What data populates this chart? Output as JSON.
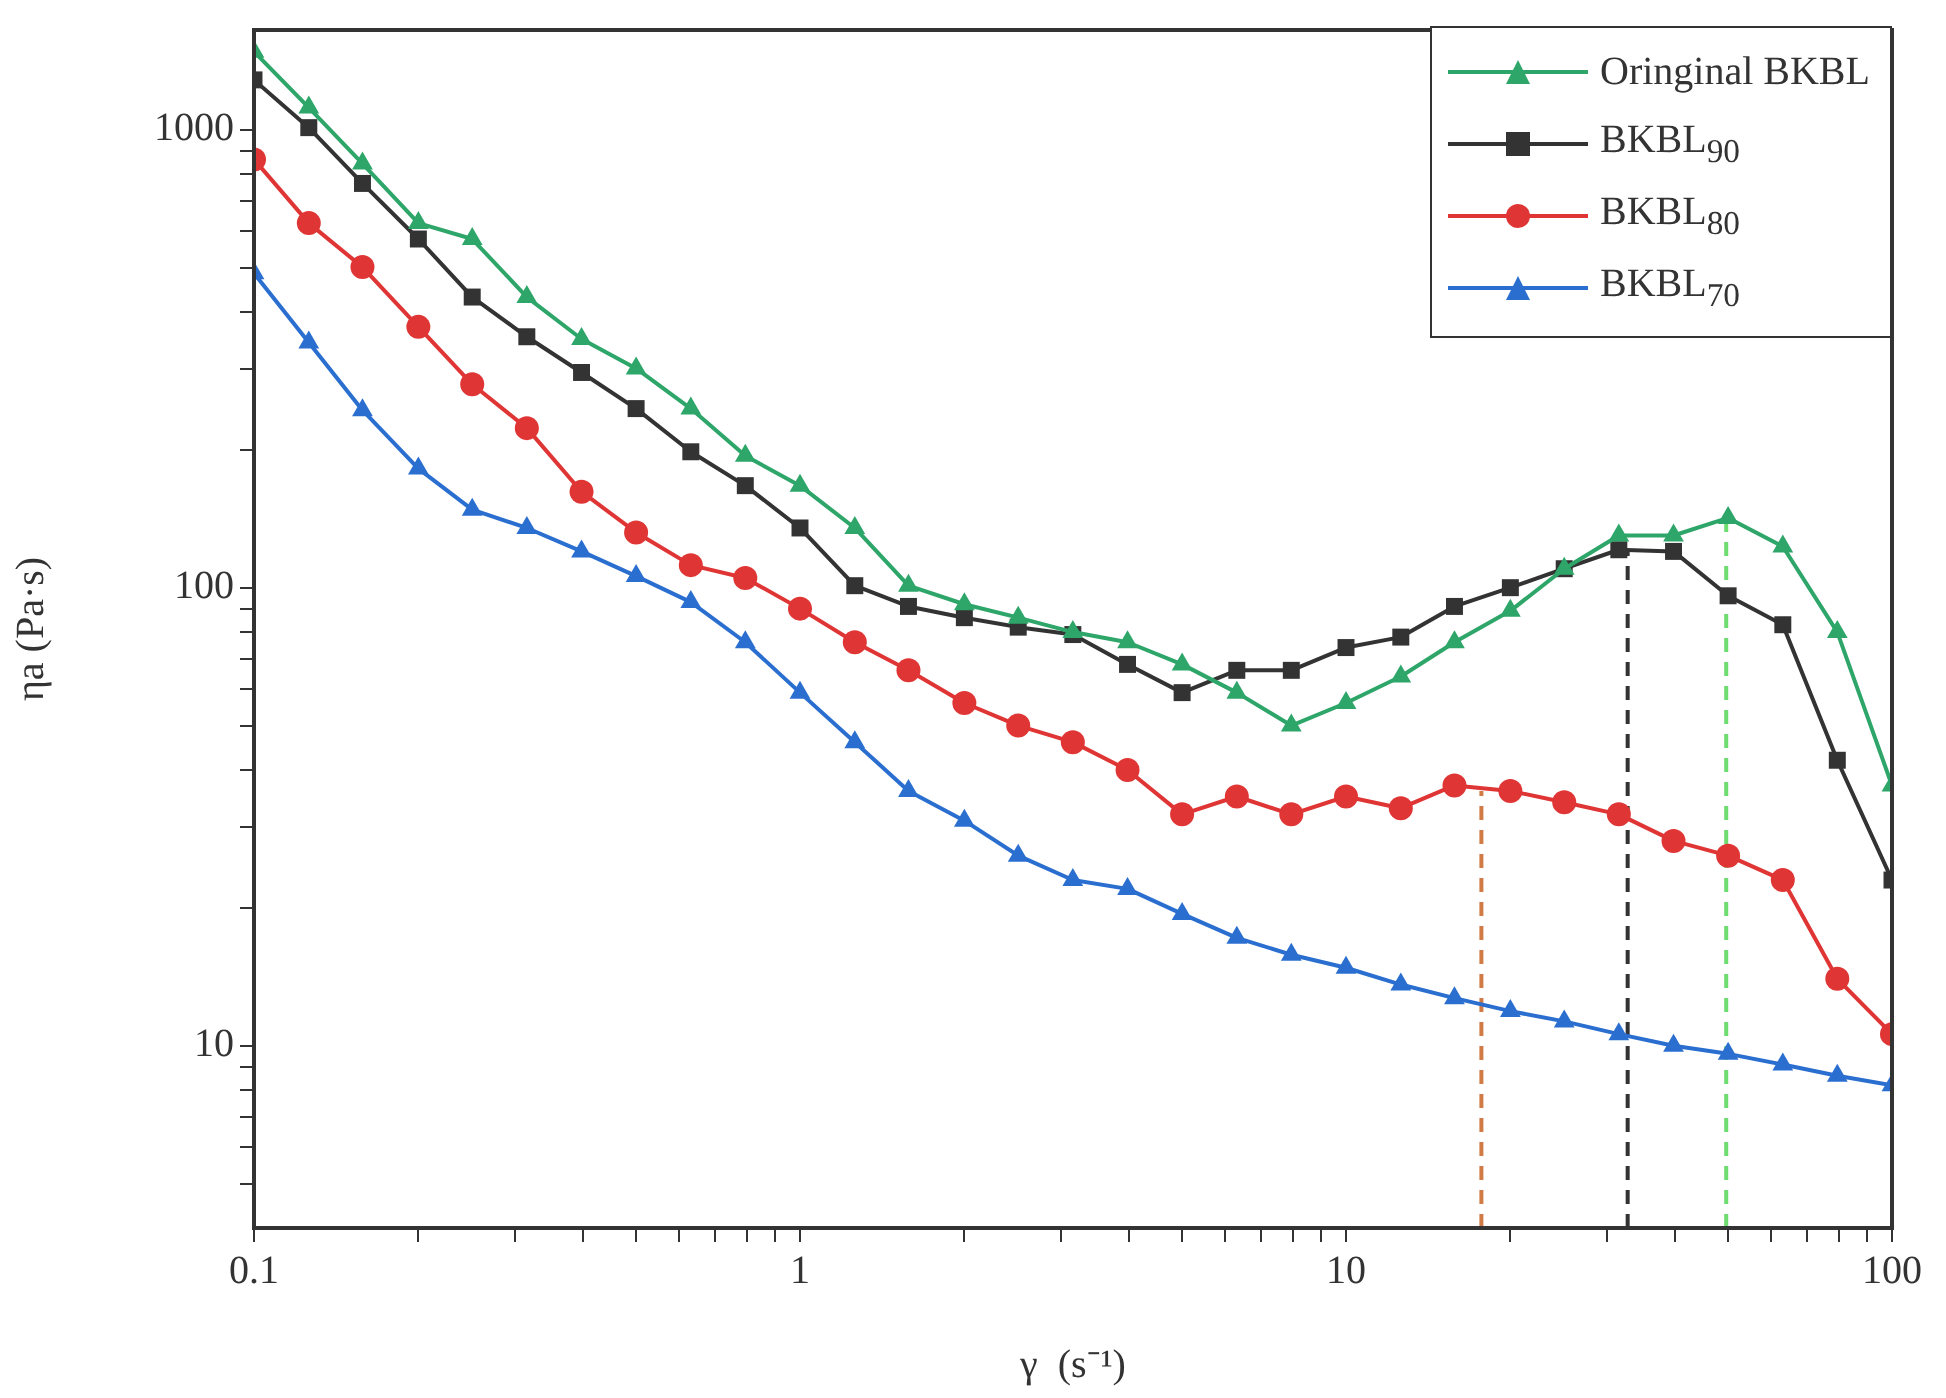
{
  "chart_data": {
    "type": "line",
    "xlabel": "γ  (s⁻¹)",
    "ylabel": "ηa (Pa·s)",
    "log": "xy",
    "x": [
      0.1,
      0.126,
      0.158,
      0.2,
      0.251,
      0.316,
      0.398,
      0.501,
      0.631,
      0.794,
      1,
      1.26,
      1.58,
      2,
      2.51,
      3.16,
      3.98,
      5.01,
      6.31,
      7.94,
      10,
      12.6,
      15.8,
      20,
      25.1,
      31.6,
      39.8,
      50.1,
      63.1,
      79.4,
      100
    ],
    "xlim": [
      0.1,
      100
    ],
    "xticks": [
      0.1,
      {
        "value": 0.2,
        "label": null
      },
      {
        "value": 0.3,
        "label": null
      },
      {
        "value": 0.4,
        "label": null
      },
      {
        "value": 0.5,
        "label": null
      },
      {
        "value": 0.6,
        "label": null
      },
      {
        "value": 0.7,
        "label": null
      },
      {
        "value": 0.8,
        "label": null
      },
      {
        "value": 0.9,
        "label": null
      },
      1,
      {
        "value": 2,
        "label": null
      },
      {
        "value": 3,
        "label": null
      },
      {
        "value": 4,
        "label": null
      },
      {
        "value": 5,
        "label": null
      },
      {
        "value": 6,
        "label": null
      },
      {
        "value": 7,
        "label": null
      },
      {
        "value": 8,
        "label": null
      },
      {
        "value": 9,
        "label": null
      },
      10,
      {
        "value": 20,
        "label": null
      },
      {
        "value": 30,
        "label": null
      },
      {
        "value": 40,
        "label": null
      },
      {
        "value": 50,
        "label": null
      },
      {
        "value": 60,
        "label": null
      },
      {
        "value": 70,
        "label": null
      },
      {
        "value": 80,
        "label": null
      },
      {
        "value": 90,
        "label": null
      },
      100
    ],
    "ylim": [
      4,
      1650
    ],
    "yticks": [
      {
        "value": 5,
        "label": null
      },
      {
        "value": 6,
        "label": null
      },
      {
        "value": 7,
        "label": null
      },
      {
        "value": 8,
        "label": null
      },
      {
        "value": 9,
        "label": null
      },
      10,
      {
        "value": 20,
        "label": null
      },
      {
        "value": 30,
        "label": null
      },
      {
        "value": 40,
        "label": null
      },
      {
        "value": 50,
        "label": null
      },
      {
        "value": 60,
        "label": null
      },
      {
        "value": 70,
        "label": null
      },
      {
        "value": 80,
        "label": null
      },
      {
        "value": 90,
        "label": null
      },
      100,
      {
        "value": 200,
        "label": null
      },
      {
        "value": 300,
        "label": null
      },
      {
        "value": 400,
        "label": null
      },
      {
        "value": 500,
        "label": null
      },
      {
        "value": 600,
        "label": null
      },
      {
        "value": 700,
        "label": null
      },
      {
        "value": 800,
        "label": null
      },
      {
        "value": 900,
        "label": null
      },
      1000
    ],
    "grid": false,
    "legend": "top right",
    "line_style": "solid",
    "series": [
      {
        "name": "Oringinal  BKBL",
        "color": "#2ea66a",
        "marker": "triangle",
        "values": [
          1480,
          1117,
          843,
          625,
          577,
          431,
          349,
          301,
          246,
          194,
          167,
          135,
          101,
          92,
          86,
          80,
          76,
          68,
          59,
          50,
          56,
          64,
          76,
          89,
          110,
          130,
          130,
          142,
          123,
          80,
          37
        ]
      },
      {
        "name": "BKBL$_{90}$",
        "color": "#333333",
        "marker": "square",
        "values": [
          1284,
          1010,
          763,
          577,
          431,
          353,
          295,
          246,
          198,
          167,
          135,
          101,
          91,
          86,
          82,
          79,
          68,
          59,
          66,
          66,
          74,
          78,
          91,
          100,
          110,
          121,
          120,
          96,
          83,
          42,
          23
        ]
      },
      {
        "name": "BKBL$_{80}$",
        "color": "#e03535",
        "marker": "circle",
        "values": [
          861,
          625,
          501,
          371,
          278,
          223,
          162,
          132,
          112,
          105,
          90,
          76,
          66,
          56,
          50,
          46,
          40,
          32,
          35,
          32,
          35,
          33,
          37,
          36,
          34,
          32,
          28,
          26,
          23,
          14,
          10.6
        ]
      },
      {
        "name": "BKBL$_{70}$",
        "color": "#2a6fd0",
        "marker": "triangle",
        "values": [
          486,
          343,
          244,
          182,
          148,
          135,
          120,
          106,
          93,
          76,
          59,
          46,
          36,
          31,
          26,
          23,
          22,
          19.4,
          17.2,
          15.8,
          14.8,
          13.6,
          12.7,
          11.9,
          11.3,
          10.6,
          10,
          9.6,
          9.1,
          8.6,
          8.2
        ]
      },
      {
        "type": "line",
        "x": [
          17.7,
          17.7
        ],
        "values": [
          4,
          36
        ],
        "color": "#d07a45",
        "marker": "none",
        "line_style": "dashed"
      },
      {
        "type": "line",
        "x": [
          32.8,
          32.8
        ],
        "values": [
          4,
          121
        ],
        "color": "#333333",
        "marker": "none",
        "line_style": "dashed"
      },
      {
        "type": "line",
        "x": [
          49.7,
          49.7
        ],
        "values": [
          4,
          142
        ],
        "color": "#6fdc6f",
        "marker": "none",
        "line_style": "dashed"
      }
    ]
  }
}
